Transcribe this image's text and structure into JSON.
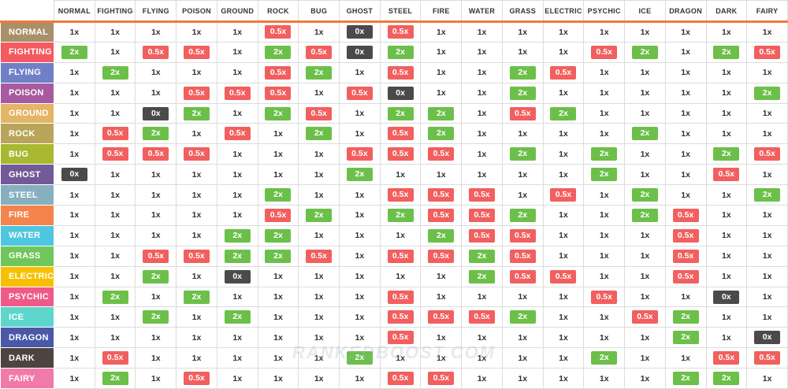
{
  "types": [
    "NORMAL",
    "FIGHTING",
    "FLYING",
    "POISON",
    "GROUND",
    "ROCK",
    "BUG",
    "GHOST",
    "STEEL",
    "FIRE",
    "WATER",
    "GRASS",
    "ELECTRIC",
    "PSYCHIC",
    "ICE",
    "DRAGON",
    "DARK",
    "FAIRY"
  ],
  "type_colors": [
    "#a8906a",
    "#f45a5f",
    "#7080c8",
    "#a85aa0",
    "#e3b566",
    "#b9a55a",
    "#a8b830",
    "#725a96",
    "#86b0c0",
    "#f4834c",
    "#4fc6e0",
    "#70c65a",
    "#f6c000",
    "#f05a8a",
    "#5fd6cc",
    "#4a58a8",
    "#4d4440",
    "#f27aa8"
  ],
  "badge_colors": {
    "2x": "#6cc04a",
    "0.5x": "#f25f5f",
    "0x": "#4a4a4a"
  },
  "watermark": "RANKEDBOOST.COM",
  "matrix": [
    [
      "1x",
      "1x",
      "1x",
      "1x",
      "1x",
      "0.5x",
      "1x",
      "0x",
      "0.5x",
      "1x",
      "1x",
      "1x",
      "1x",
      "1x",
      "1x",
      "1x",
      "1x",
      "1x"
    ],
    [
      "2x",
      "1x",
      "0.5x",
      "0.5x",
      "1x",
      "2x",
      "0.5x",
      "0x",
      "2x",
      "1x",
      "1x",
      "1x",
      "1x",
      "0.5x",
      "2x",
      "1x",
      "2x",
      "0.5x"
    ],
    [
      "1x",
      "2x",
      "1x",
      "1x",
      "1x",
      "0.5x",
      "2x",
      "1x",
      "0.5x",
      "1x",
      "1x",
      "2x",
      "0.5x",
      "1x",
      "1x",
      "1x",
      "1x",
      "1x"
    ],
    [
      "1x",
      "1x",
      "1x",
      "0.5x",
      "0.5x",
      "0.5x",
      "1x",
      "0.5x",
      "0x",
      "1x",
      "1x",
      "2x",
      "1x",
      "1x",
      "1x",
      "1x",
      "1x",
      "2x"
    ],
    [
      "1x",
      "1x",
      "0x",
      "2x",
      "1x",
      "2x",
      "0.5x",
      "1x",
      "2x",
      "2x",
      "1x",
      "0.5x",
      "2x",
      "1x",
      "1x",
      "1x",
      "1x",
      "1x"
    ],
    [
      "1x",
      "0.5x",
      "2x",
      "1x",
      "0.5x",
      "1x",
      "2x",
      "1x",
      "0.5x",
      "2x",
      "1x",
      "1x",
      "1x",
      "1x",
      "2x",
      "1x",
      "1x",
      "1x"
    ],
    [
      "1x",
      "0.5x",
      "0.5x",
      "0.5x",
      "1x",
      "1x",
      "1x",
      "0.5x",
      "0.5x",
      "0.5x",
      "1x",
      "2x",
      "1x",
      "2x",
      "1x",
      "1x",
      "2x",
      "0.5x"
    ],
    [
      "0x",
      "1x",
      "1x",
      "1x",
      "1x",
      "1x",
      "1x",
      "2x",
      "1x",
      "1x",
      "1x",
      "1x",
      "1x",
      "2x",
      "1x",
      "1x",
      "0.5x",
      "1x"
    ],
    [
      "1x",
      "1x",
      "1x",
      "1x",
      "1x",
      "2x",
      "1x",
      "1x",
      "0.5x",
      "0.5x",
      "0.5x",
      "1x",
      "0.5x",
      "1x",
      "2x",
      "1x",
      "1x",
      "2x"
    ],
    [
      "1x",
      "1x",
      "1x",
      "1x",
      "1x",
      "0.5x",
      "2x",
      "1x",
      "2x",
      "0.5x",
      "0.5x",
      "2x",
      "1x",
      "1x",
      "2x",
      "0.5x",
      "1x",
      "1x"
    ],
    [
      "1x",
      "1x",
      "1x",
      "1x",
      "2x",
      "2x",
      "1x",
      "1x",
      "1x",
      "2x",
      "0.5x",
      "0.5x",
      "1x",
      "1x",
      "1x",
      "0.5x",
      "1x",
      "1x"
    ],
    [
      "1x",
      "1x",
      "0.5x",
      "0.5x",
      "2x",
      "2x",
      "0.5x",
      "1x",
      "0.5x",
      "0.5x",
      "2x",
      "0.5x",
      "1x",
      "1x",
      "1x",
      "0.5x",
      "1x",
      "1x"
    ],
    [
      "1x",
      "1x",
      "2x",
      "1x",
      "0x",
      "1x",
      "1x",
      "1x",
      "1x",
      "1x",
      "2x",
      "0.5x",
      "0.5x",
      "1x",
      "1x",
      "0.5x",
      "1x",
      "1x"
    ],
    [
      "1x",
      "2x",
      "1x",
      "2x",
      "1x",
      "1x",
      "1x",
      "1x",
      "0.5x",
      "1x",
      "1x",
      "1x",
      "1x",
      "0.5x",
      "1x",
      "1x",
      "0x",
      "1x"
    ],
    [
      "1x",
      "1x",
      "2x",
      "1x",
      "2x",
      "1x",
      "1x",
      "1x",
      "0.5x",
      "0.5x",
      "0.5x",
      "2x",
      "1x",
      "1x",
      "0.5x",
      "2x",
      "1x",
      "1x"
    ],
    [
      "1x",
      "1x",
      "1x",
      "1x",
      "1x",
      "1x",
      "1x",
      "1x",
      "0.5x",
      "1x",
      "1x",
      "1x",
      "1x",
      "1x",
      "1x",
      "2x",
      "1x",
      "0x"
    ],
    [
      "1x",
      "0.5x",
      "1x",
      "1x",
      "1x",
      "1x",
      "1x",
      "2x",
      "1x",
      "1x",
      "1x",
      "1x",
      "1x",
      "2x",
      "1x",
      "1x",
      "0.5x",
      "0.5x"
    ],
    [
      "1x",
      "2x",
      "1x",
      "0.5x",
      "1x",
      "1x",
      "1x",
      "1x",
      "0.5x",
      "0.5x",
      "1x",
      "1x",
      "1x",
      "1x",
      "1x",
      "2x",
      "2x",
      "1x"
    ]
  ]
}
